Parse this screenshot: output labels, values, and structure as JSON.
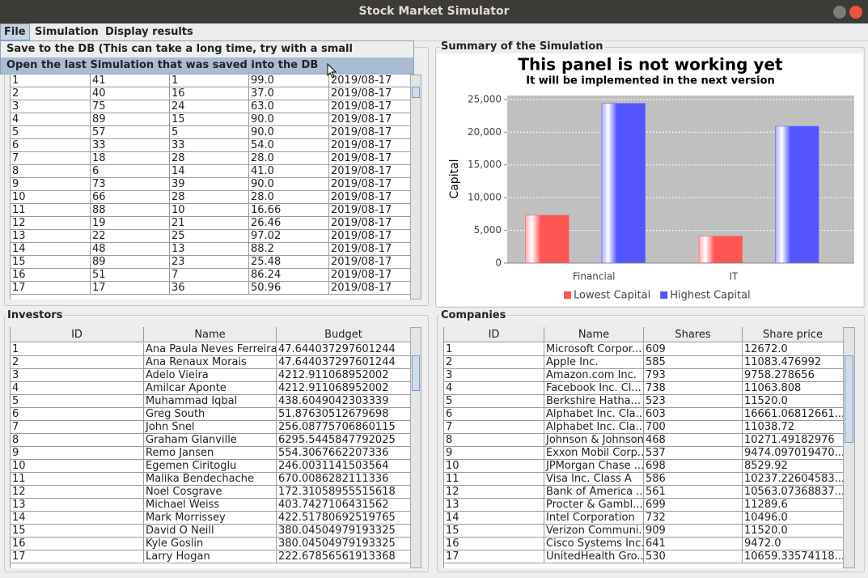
{
  "window": {
    "title": "Stock Market Simulator"
  },
  "menu": {
    "items": [
      "File",
      "Simulation",
      "Display results"
    ],
    "file_dropdown": [
      "Save to the DB (This can take a long time, try with a small simulation)",
      "Open the last Simulation that was saved into the DB"
    ]
  },
  "transactions": {
    "rows": [
      [
        "1",
        "41",
        "1",
        "99.0",
        "2019/08-17"
      ],
      [
        "2",
        "40",
        "16",
        "37.0",
        "2019/08-17"
      ],
      [
        "3",
        "75",
        "24",
        "63.0",
        "2019/08-17"
      ],
      [
        "4",
        "89",
        "15",
        "90.0",
        "2019/08-17"
      ],
      [
        "5",
        "57",
        "5",
        "90.0",
        "2019/08-17"
      ],
      [
        "6",
        "33",
        "33",
        "54.0",
        "2019/08-17"
      ],
      [
        "7",
        "18",
        "28",
        "28.0",
        "2019/08-17"
      ],
      [
        "8",
        "6",
        "14",
        "41.0",
        "2019/08-17"
      ],
      [
        "9",
        "73",
        "39",
        "90.0",
        "2019/08-17"
      ],
      [
        "10",
        "66",
        "28",
        "28.0",
        "2019/08-17"
      ],
      [
        "11",
        "88",
        "10",
        "16.66",
        "2019/08-17"
      ],
      [
        "12",
        "19",
        "21",
        "26.46",
        "2019/08-17"
      ],
      [
        "13",
        "22",
        "25",
        "97.02",
        "2019/08-17"
      ],
      [
        "14",
        "48",
        "13",
        "88.2",
        "2019/08-17"
      ],
      [
        "15",
        "89",
        "23",
        "25.48",
        "2019/08-17"
      ],
      [
        "16",
        "51",
        "7",
        "86.24",
        "2019/08-17"
      ],
      [
        "17",
        "17",
        "36",
        "50.96",
        "2019/08-17"
      ]
    ]
  },
  "summary": {
    "title": "Summary of the Simulation"
  },
  "chart_data": {
    "type": "bar",
    "title": "This panel is not working yet",
    "subtitle": "It will be implemented in the next version",
    "y_label": "Capital",
    "categories": [
      "Financial",
      "IT"
    ],
    "series": [
      {
        "name": "Lowest Capital",
        "color": "#ff5555",
        "values": [
          7300,
          4100
        ]
      },
      {
        "name": "Highest Capital",
        "color": "#5555ff",
        "values": [
          24400,
          20900
        ]
      }
    ],
    "ylim": [
      0,
      25600
    ],
    "yticks": [
      0,
      {
        "value": 5000,
        "label": "5,000"
      },
      {
        "value": 10000,
        "label": "10,000"
      },
      {
        "value": 15000,
        "label": "15,000"
      },
      {
        "value": 20000,
        "label": "20,000"
      },
      {
        "value": 25000,
        "label": "25,000"
      }
    ],
    "grid": true,
    "legend": "bottom"
  },
  "investors": {
    "title": "Investors",
    "headers": [
      "ID",
      "Name",
      "Budget"
    ],
    "rows": [
      [
        "1",
        "Ana Paula Neves Ferreira",
        "47.644037297601244"
      ],
      [
        "2",
        "Ana Renaux Morais",
        "47.644037297601244"
      ],
      [
        "3",
        "Adelo Vieira",
        "4212.911068952002"
      ],
      [
        "4",
        "Amilcar Aponte",
        "4212.911068952002"
      ],
      [
        "5",
        "Muhammad Iqbal",
        "438.6049042303339"
      ],
      [
        "6",
        "Greg South",
        "51.87630512679698"
      ],
      [
        "7",
        "John Snel",
        "256.08775706860115"
      ],
      [
        "8",
        "Graham Glanville",
        "6295.5445847792025"
      ],
      [
        "9",
        "Remo Jansen",
        "554.3067662207336"
      ],
      [
        "10",
        "Egemen Ciritoglu",
        "246.0031141503564"
      ],
      [
        "11",
        "Malika Bendechache",
        "670.0086282111336"
      ],
      [
        "12",
        "Noel Cosgrave",
        "172.31058955515618"
      ],
      [
        "13",
        "Michael Weiss",
        "403.7427106431562"
      ],
      [
        "14",
        "Mark Morrissey",
        "422.51780692519765"
      ],
      [
        "15",
        "David O Neill",
        "380.04504979193325"
      ],
      [
        "16",
        "Kyle Goslin",
        "380.04504979193325"
      ],
      [
        "17",
        "Larry Hogan",
        "222.67856561913368"
      ]
    ]
  },
  "companies": {
    "title": "Companies",
    "headers": [
      "ID",
      "Name",
      "Shares",
      "Share price"
    ],
    "rows": [
      [
        "1",
        "Microsoft Corpor...",
        "609",
        "12672.0"
      ],
      [
        "2",
        "Apple Inc.",
        "585",
        "11083.476992"
      ],
      [
        "3",
        "Amazon.com Inc.",
        "793",
        "9758.278656"
      ],
      [
        "4",
        "Facebook Inc. Cl...",
        "738",
        "11063.808"
      ],
      [
        "5",
        "Berkshire Hatha...",
        "523",
        "11520.0"
      ],
      [
        "6",
        "Alphabet Inc. Cla...",
        "603",
        "16661.06812661..."
      ],
      [
        "7",
        "Alphabet Inc. Cla...",
        "700",
        "11038.72"
      ],
      [
        "8",
        "Johnson & Johnson",
        "468",
        "10271.49182976"
      ],
      [
        "9",
        "Exxon Mobil Corp...",
        "537",
        "9474.097019470..."
      ],
      [
        "10",
        "JPMorgan Chase ...",
        "698",
        "8529.92"
      ],
      [
        "11",
        "Visa Inc. Class A",
        "586",
        "10237.22604583..."
      ],
      [
        "12",
        "Bank of America ...",
        "561",
        "10563.07368837..."
      ],
      [
        "13",
        "Procter & Gambl...",
        "699",
        "11289.6"
      ],
      [
        "14",
        "Intel Corporation",
        "732",
        "10496.0"
      ],
      [
        "15",
        "Verizon Communi...",
        "909",
        "11520.0"
      ],
      [
        "16",
        "Cisco Systems Inc.",
        "641",
        "9472.0"
      ],
      [
        "17",
        "UnitedHealth Gro...",
        "530",
        "10659.33574118..."
      ]
    ]
  }
}
